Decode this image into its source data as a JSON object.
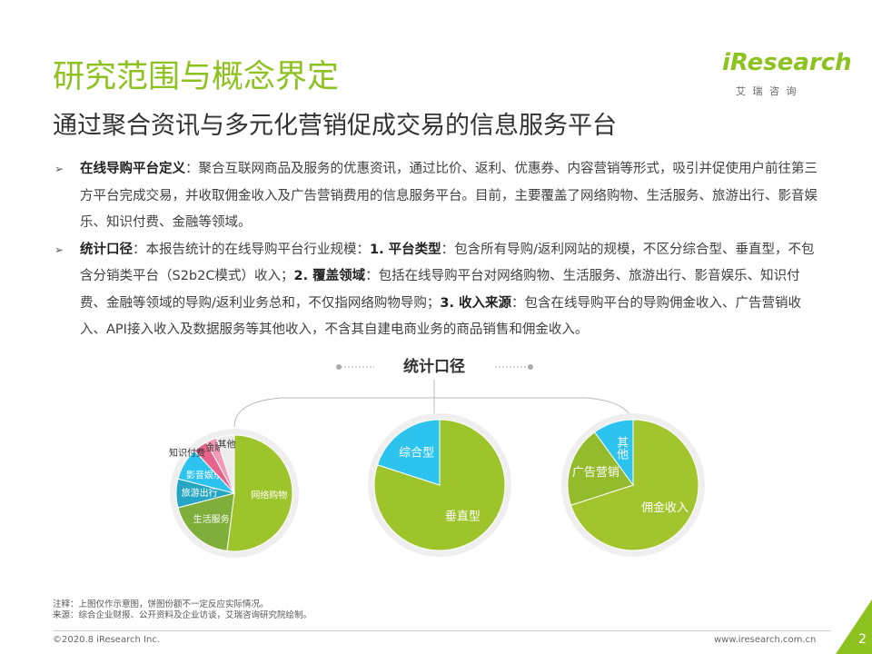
{
  "header": {
    "title": "研究范围与概念界定",
    "subtitle": "通过聚合资讯与多元化营销促成交易的信息服务平台",
    "logo": "iResearch",
    "logo_sub": "艾 瑞 咨 询"
  },
  "bullets": [
    [
      {
        "text": "在线导购平台定义",
        "bold": true
      },
      {
        "text": "：聚合互联网商品及服务的优惠资讯，通过比价、返利、优惠券、内容营销等形式，吸引并促使用户前往第三方平台完成交易，并收取佣金收入及广告营销费用的信息服务平台。目前，主要覆盖了网络购物、生活服务、旅游出行、影音娱乐、知识付费、金融等领域。",
        "bold": false
      }
    ],
    [
      {
        "text": "统计口径",
        "bold": true
      },
      {
        "text": "：本报告统计的在线导购平台行业规模：",
        "bold": false
      },
      {
        "text": "1. 平台类型",
        "bold": true
      },
      {
        "text": "：包含所有导购/返利网站的规模，不区分综合型、垂直型，不包含分销类平台（S2b2C模式）收入；",
        "bold": false
      },
      {
        "text": "2. 覆盖领域",
        "bold": true
      },
      {
        "text": "：包括在线导购平台对网络购物、生活服务、旅游出行、影音娱乐、知识付费、金融等领域的导购/返利业务总和，不仅指网络购物导购；",
        "bold": false
      },
      {
        "text": "3. 收入来源",
        "bold": true
      },
      {
        "text": "：包含在线导购平台的导购佣金收入、广告营销收入、API接入收入及数据服务等其他收入，不含其自建电商业务的商品销售和佣金收入。",
        "bold": false
      }
    ]
  ],
  "diagram_title": "统计口径",
  "pies": [
    {
      "slices": [
        {
          "label": "网络购物",
          "value": 52,
          "color": "#9dc42a"
        },
        {
          "label": "生活服务",
          "value": 19,
          "color": "#7fae3a"
        },
        {
          "label": "旅游出行",
          "value": 8,
          "color": "#26a6c4"
        },
        {
          "label": "影音娱乐",
          "value": 9,
          "color": "#2cc3ee"
        },
        {
          "label": "知识付费",
          "value": 4,
          "color": "#e8638c"
        },
        {
          "label": "金融",
          "value": 3,
          "color": "#f29bb6"
        },
        {
          "label": "其他",
          "value": 5,
          "color": "#ececec"
        }
      ]
    },
    {
      "slices": [
        {
          "label": "垂直型",
          "value": 80,
          "color": "#9dc42a"
        },
        {
          "label": "综合型",
          "value": 20,
          "color": "#2cc3ee"
        }
      ]
    },
    {
      "slices": [
        {
          "label": "佣金收入",
          "value": 70,
          "color": "#a2c52e"
        },
        {
          "label": "广告营销",
          "value": 20,
          "color": "#93bb2c"
        },
        {
          "label": "其他",
          "value": 10,
          "color": "#2cc3ee"
        }
      ]
    }
  ],
  "notes": [
    "注释：上图仅作示意图，饼图份额不一定反应实际情况。",
    "来源：综合企业财报、公开资料及企业访谈，艾瑞咨询研究院绘制。"
  ],
  "footer": {
    "copyright": "©2020.8 iResearch Inc.",
    "url": "www.iresearch.com.cn",
    "page": "2"
  }
}
